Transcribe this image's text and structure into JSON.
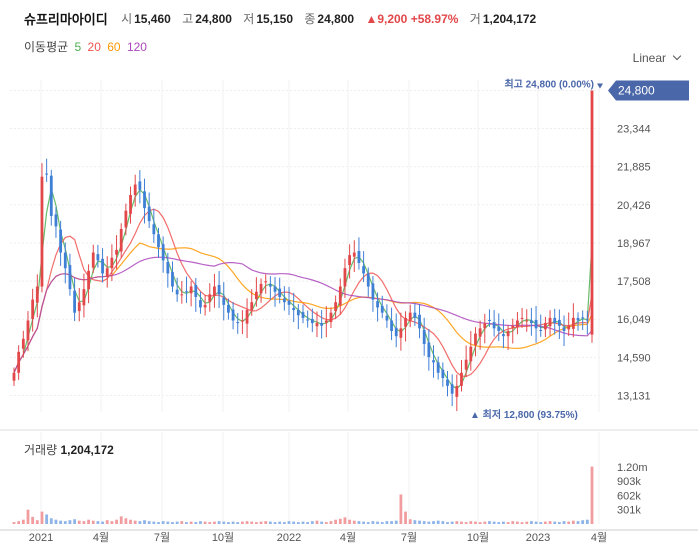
{
  "header": {
    "name": "슈프리마아이디",
    "open_label": "시",
    "open": "15,460",
    "high_label": "고",
    "high": "24,800",
    "low_label": "저",
    "low": "15,150",
    "close_label": "종",
    "close": "24,800",
    "change": "▲9,200",
    "change_pct": "+58.97%",
    "volume_label": "거",
    "volume": "1,204,172"
  },
  "ma_legend": {
    "label": "이동평균",
    "periods": [
      {
        "text": "5",
        "color": "#4caf50"
      },
      {
        "text": "20",
        "color": "#ef5350"
      },
      {
        "text": "60",
        "color": "#ff9800"
      },
      {
        "text": "120",
        "color": "#ab47bc"
      }
    ]
  },
  "scale_selector": {
    "label": "Linear"
  },
  "price_marks": {
    "high": "최고 24,800 (0.00%)",
    "low": "▲ 최저 12,800 (93.75%)",
    "current": "24,800"
  },
  "volume_panel": {
    "label": "거래량",
    "value": "1,204,172"
  },
  "colors": {
    "up": "#e2474a",
    "down": "#3f7fd6",
    "current_tag": "#4a67a9",
    "ma5": "#4caf50",
    "ma20": "#ef5350",
    "ma60": "#ff9800",
    "ma120": "#ab47bc"
  },
  "chart_data": {
    "type": "candlestick",
    "y_axis": {
      "ticks": [
        "24,800",
        "23,344",
        "21,885",
        "20,426",
        "18,967",
        "17,508",
        "16,049",
        "14,590",
        "13,131"
      ],
      "range": [
        12500,
        25200
      ]
    },
    "x_axis": {
      "ticks": [
        "2021",
        "4월",
        "7월",
        "10월",
        "2022",
        "4월",
        "7월",
        "10월",
        "2023",
        "4월"
      ]
    },
    "volume_axis": {
      "ticks": [
        "1.20m",
        "903k",
        "602k",
        "301k"
      ],
      "range": [
        0,
        1300000
      ]
    },
    "series_close": [
      14000,
      14800,
      15300,
      16000,
      16800,
      17300,
      21500,
      21600,
      20000,
      19600,
      18600,
      18000,
      17200,
      16300,
      16700,
      17200,
      17900,
      18600,
      18300,
      17800,
      18000,
      18400,
      18700,
      19500,
      20200,
      20800,
      21200,
      21000,
      20300,
      19800,
      19300,
      18800,
      18300,
      17800,
      17300,
      17000,
      17000,
      17100,
      17300,
      16900,
      16500,
      16600,
      17000,
      17300,
      17000,
      16600,
      16300,
      16000,
      15900,
      16000,
      16400,
      16700,
      17100,
      17400,
      17500,
      17300,
      17100,
      16900,
      16700,
      16600,
      16400,
      16200,
      16100,
      16000,
      15900,
      15900,
      15800,
      16000,
      16300,
      16700,
      17300,
      18000,
      18500,
      18600,
      18200,
      17800,
      17300,
      16800,
      16500,
      16300,
      16000,
      15600,
      15400,
      15700,
      16100,
      16300,
      16100,
      15700,
      15100,
      14600,
      14400,
      14000,
      13800,
      13500,
      13200,
      13500,
      14000,
      14500,
      15000,
      15500,
      15700,
      15900,
      16000,
      15700,
      15600,
      15400,
      15600,
      15800,
      16000,
      16100,
      16000,
      15900,
      15700,
      15600,
      15900,
      16100,
      15900,
      15800,
      15600,
      15800,
      16100,
      16000,
      16100,
      16000,
      24800
    ],
    "volume": [
      40000,
      60000,
      90000,
      300000,
      150000,
      80000,
      260000,
      200000,
      120000,
      90000,
      70000,
      60000,
      80000,
      100000,
      70000,
      60000,
      90000,
      70000,
      60000,
      50000,
      80000,
      60000,
      90000,
      160000,
      120000,
      90000,
      70000,
      60000,
      80000,
      60000,
      50000,
      40000,
      60000,
      50000,
      40000,
      50000,
      60000,
      40000,
      50000,
      40000,
      60000,
      50000,
      40000,
      50000,
      60000,
      50000,
      40000,
      50000,
      40000,
      50000,
      60000,
      50000,
      40000,
      50000,
      60000,
      50000,
      40000,
      50000,
      40000,
      60000,
      50000,
      40000,
      50000,
      40000,
      60000,
      70000,
      50000,
      40000,
      60000,
      90000,
      110000,
      140000,
      90000,
      70000,
      60000,
      50000,
      40000,
      60000,
      50000,
      40000,
      60000,
      60000,
      70000,
      620000,
      260000,
      100000,
      80000,
      70000,
      60000,
      50000,
      60000,
      70000,
      60000,
      40000,
      50000,
      60000,
      50000,
      40000,
      60000,
      50000,
      40000,
      50000,
      60000,
      50000,
      40000,
      50000,
      40000,
      60000,
      50000,
      40000,
      50000,
      60000,
      50000,
      40000,
      50000,
      60000,
      50000,
      40000,
      60000,
      50000,
      70000,
      60000,
      80000,
      90000,
      1204172
    ]
  }
}
